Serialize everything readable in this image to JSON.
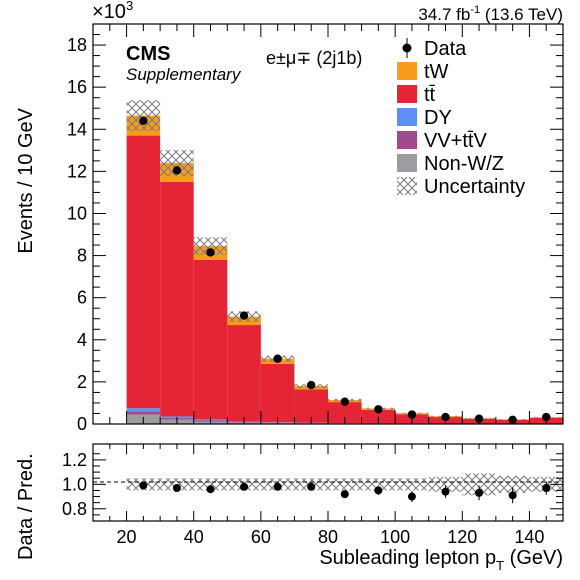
{
  "chart_data": {
    "type": "bar",
    "experiment": "CMS",
    "subtitle": "Supplementary",
    "lumi_label": "34.7 fb",
    "lumi_sup": "-1",
    "energy_label": "(13.6 TeV)",
    "channel_label": "e±μ∓ (2j1b)",
    "ylabel": "Events / 10 GeV",
    "ylabel_ratio": "Data / Pred.",
    "xlabel": "Subleading lepton p",
    "xlabel_sub": "T",
    "xlabel_unit": "(GeV)",
    "yscale_label": "×10",
    "yscale_exp": "3",
    "xlim": [
      10,
      150
    ],
    "ylim": [
      0,
      19
    ],
    "ratio_ylim": [
      0.7,
      1.33
    ],
    "x_ticks": [
      20,
      40,
      60,
      80,
      100,
      120,
      140
    ],
    "y_ticks": [
      0,
      2,
      4,
      6,
      8,
      10,
      12,
      14,
      16,
      18
    ],
    "ratio_ticks": [
      0.8,
      1.0,
      1.2
    ],
    "ratio_tick_labels": [
      "0.8",
      "1.0",
      "1.2"
    ],
    "bin_edges": [
      20,
      30,
      40,
      50,
      60,
      70,
      80,
      90,
      100,
      110,
      120,
      130,
      140,
      150
    ],
    "stack": [
      {
        "name": "Non-W/Z",
        "color": "#9c9ca1",
        "values": [
          0.45,
          0.2,
          0.12,
          0.06,
          0.04,
          0.03,
          0.02,
          0.01,
          0.01,
          0.01,
          0.01,
          0.01,
          0.01
        ]
      },
      {
        "name": "VV+tt̄V",
        "color": "#a0498f",
        "values": [
          0.12,
          0.08,
          0.05,
          0.03,
          0.02,
          0.01,
          0.01,
          0.01,
          0.01,
          0.0,
          0.0,
          0.0,
          0.0
        ]
      },
      {
        "name": "DY",
        "color": "#5e8ff5",
        "values": [
          0.18,
          0.08,
          0.05,
          0.03,
          0.02,
          0.02,
          0.01,
          0.01,
          0.01,
          0.01,
          0.0,
          0.0,
          0.0
        ]
      },
      {
        "name": "tt̄",
        "color": "#e42536",
        "values": [
          12.95,
          11.14,
          7.58,
          4.58,
          2.77,
          1.59,
          1.0,
          0.64,
          0.43,
          0.31,
          0.23,
          0.19,
          0.28
        ]
      },
      {
        "name": "tW",
        "color": "#f89c20",
        "values": [
          0.95,
          0.9,
          0.65,
          0.4,
          0.25,
          0.15,
          0.1,
          0.07,
          0.05,
          0.04,
          0.03,
          0.02,
          0.03
        ]
      }
    ],
    "uncertainty_rel": [
      0.05,
      0.05,
      0.05,
      0.05,
      0.05,
      0.05,
      0.05,
      0.05,
      0.05,
      0.06,
      0.09,
      0.07,
      0.06
    ],
    "data": {
      "name": "Data",
      "x": [
        25,
        35,
        45,
        55,
        65,
        75,
        85,
        95,
        105,
        115,
        125,
        135,
        145
      ],
      "y": [
        14.4,
        12.05,
        8.15,
        5.15,
        3.1,
        1.85,
        1.06,
        0.7,
        0.45,
        0.33,
        0.25,
        0.2,
        0.33
      ],
      "ratio": [
        0.99,
        0.97,
        0.96,
        0.98,
        0.98,
        0.98,
        0.92,
        0.95,
        0.9,
        0.94,
        0.93,
        0.91,
        0.97
      ],
      "ratio_err": [
        0.01,
        0.01,
        0.01,
        0.015,
        0.02,
        0.025,
        0.03,
        0.035,
        0.045,
        0.05,
        0.06,
        0.065,
        0.055
      ]
    },
    "legend": [
      "Data",
      "tW",
      "tt̄",
      "DY",
      "VV+tt̄V",
      "Non-W/Z",
      "Uncertainty"
    ],
    "legend_position": "top-right"
  }
}
